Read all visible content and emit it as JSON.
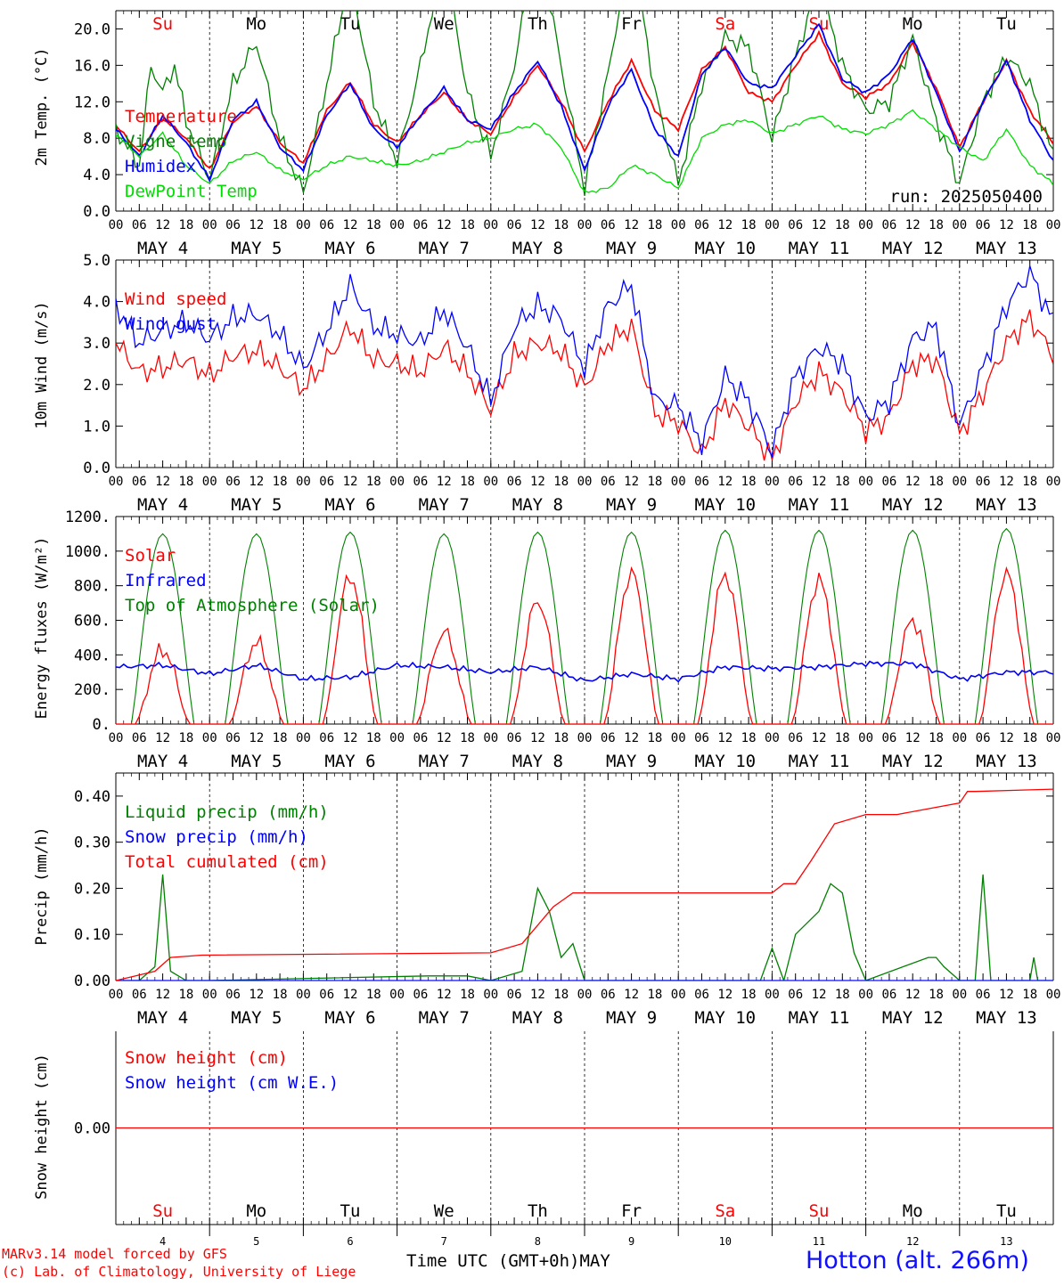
{
  "footer": {
    "model_line": "MARv3.14 model forced by GFS",
    "credit_line": "(c) Lab. of Climatology, University of Liege",
    "time_label": "Time UTC (GMT+0h)",
    "month": "MAY",
    "station": "Hotton (alt. 266m)"
  },
  "colors": {
    "red": "#ff0000",
    "green": "#008000",
    "lightgreen": "#00dd00",
    "blue": "#0000ff",
    "black": "#000000"
  },
  "chart_data": [
    {
      "type": "line",
      "ylabel": "2m Temp. (°C)",
      "ylim": [
        0,
        22
      ],
      "yticks": [
        "0.0",
        "4.0",
        "8.0",
        "12.0",
        "16.0",
        "20.0"
      ],
      "ytick_values": [
        0,
        4,
        8,
        12,
        16,
        20
      ],
      "annotation": "run: 2025050400",
      "days": [
        "Su",
        "Mo",
        "Tu",
        "We",
        "Th",
        "Fr",
        "Sa",
        "Su",
        "Mo",
        "Tu"
      ],
      "day_colors": [
        "red",
        "black",
        "black",
        "black",
        "black",
        "black",
        "red",
        "red",
        "black",
        "black"
      ],
      "dates": [
        "MAY  4",
        "MAY  5",
        "MAY  6",
        "MAY  7",
        "MAY  8",
        "MAY  9",
        "MAY 10",
        "MAY 11",
        "MAY 12",
        "MAY 13"
      ],
      "hour_labels": [
        "00",
        "06",
        "12",
        "18"
      ],
      "x_unit": "hours since 2025-05-04 00 UTC",
      "series": [
        {
          "name": "Temperature",
          "color": "red",
          "x": [
            0,
            6,
            12,
            18,
            24,
            30,
            36,
            42,
            48,
            54,
            60,
            66,
            72,
            78,
            84,
            90,
            96,
            102,
            108,
            114,
            120,
            126,
            132,
            138,
            144,
            150,
            156,
            162,
            168,
            174,
            180,
            186,
            192,
            198,
            204,
            210,
            216,
            222,
            228,
            234,
            240
          ],
          "y": [
            9.4,
            6.5,
            10.2,
            8.0,
            4.5,
            9.8,
            11.5,
            7.5,
            5.3,
            11.0,
            14.2,
            9.5,
            7.5,
            10.5,
            13.0,
            10.0,
            8.5,
            12.5,
            16.0,
            12.0,
            6.5,
            12.0,
            16.5,
            11.0,
            9.0,
            15.5,
            18.0,
            13.0,
            12.0,
            16.0,
            19.5,
            14.0,
            12.5,
            14.0,
            18.5,
            13.5,
            7.0,
            12.0,
            16.5,
            11.0,
            7.5
          ]
        },
        {
          "name": "Vigne temp",
          "color": "green",
          "x": [
            0,
            6,
            9,
            12,
            15,
            18,
            24,
            30,
            36,
            42,
            48,
            54,
            60,
            66,
            72,
            78,
            84,
            90,
            96,
            102,
            108,
            114,
            120,
            126,
            132,
            138,
            144,
            150,
            156,
            162,
            168,
            174,
            180,
            186,
            192,
            198,
            204,
            210,
            216,
            222,
            228,
            234,
            240
          ],
          "y": [
            9.0,
            5.0,
            16.0,
            13.0,
            16.0,
            10.0,
            3.5,
            14.0,
            18.5,
            8.0,
            2.0,
            14.0,
            26.0,
            12.0,
            5.5,
            16.0,
            28.0,
            13.0,
            6.0,
            16.0,
            30.0,
            16.0,
            2.5,
            15.0,
            30.0,
            13.0,
            3.0,
            14.0,
            19.0,
            18.0,
            8.0,
            17.0,
            25.0,
            16.0,
            11.0,
            12.0,
            19.0,
            10.0,
            3.0,
            12.0,
            17.0,
            14.0,
            6.0
          ]
        },
        {
          "name": "Humidex",
          "color": "blue",
          "x": [
            0,
            6,
            12,
            18,
            24,
            30,
            36,
            42,
            48,
            54,
            60,
            66,
            72,
            78,
            84,
            90,
            96,
            102,
            108,
            114,
            120,
            126,
            132,
            138,
            144,
            150,
            156,
            162,
            168,
            174,
            180,
            186,
            192,
            198,
            204,
            210,
            216,
            222,
            228,
            234,
            240
          ],
          "y": [
            9.0,
            6.0,
            10.5,
            7.5,
            3.5,
            10.0,
            12.0,
            7.0,
            4.5,
            10.5,
            14.0,
            9.0,
            7.0,
            10.5,
            13.5,
            10.0,
            9.0,
            13.0,
            16.5,
            11.5,
            4.5,
            11.5,
            15.5,
            9.0,
            6.0,
            15.0,
            18.0,
            14.0,
            13.5,
            17.0,
            20.5,
            14.5,
            13.0,
            15.0,
            19.0,
            13.0,
            6.5,
            12.0,
            16.5,
            10.0,
            5.5
          ]
        },
        {
          "name": "DewPoint Temp",
          "color": "lightgreen",
          "x": [
            0,
            6,
            12,
            18,
            24,
            30,
            36,
            42,
            48,
            54,
            60,
            66,
            72,
            78,
            84,
            90,
            96,
            102,
            108,
            114,
            120,
            126,
            132,
            138,
            144,
            150,
            156,
            162,
            168,
            174,
            180,
            186,
            192,
            198,
            204,
            210,
            216,
            222,
            228,
            234,
            240
          ],
          "y": [
            8.5,
            6.0,
            8.5,
            5.0,
            3.0,
            5.5,
            6.5,
            4.5,
            3.5,
            5.0,
            6.0,
            5.5,
            5.0,
            5.5,
            6.5,
            7.5,
            8.0,
            9.0,
            9.5,
            7.0,
            2.0,
            2.5,
            5.0,
            4.0,
            2.5,
            8.0,
            9.5,
            10.0,
            8.5,
            9.5,
            10.5,
            9.0,
            8.5,
            9.5,
            11.0,
            9.0,
            7.0,
            5.5,
            9.0,
            5.0,
            3.0
          ]
        }
      ]
    },
    {
      "type": "line",
      "ylabel": "10m Wind (m/s)",
      "ylim": [
        0,
        5
      ],
      "yticks": [
        "0.0",
        "1.0",
        "2.0",
        "3.0",
        "4.0",
        "5.0"
      ],
      "ytick_values": [
        0,
        1,
        2,
        3,
        4,
        5
      ],
      "days": [],
      "dates": [
        "MAY  4",
        "MAY  5",
        "MAY  6",
        "MAY  7",
        "MAY  8",
        "MAY  9",
        "MAY 10",
        "MAY 11",
        "MAY 12",
        "MAY 13"
      ],
      "hour_labels": [
        "00",
        "06",
        "12",
        "18"
      ],
      "x_unit": "hours since 2025-05-04 00 UTC",
      "series": [
        {
          "name": "Wind speed",
          "color": "red",
          "x": [
            0,
            6,
            12,
            18,
            24,
            30,
            36,
            42,
            48,
            54,
            60,
            66,
            72,
            78,
            84,
            90,
            96,
            102,
            108,
            114,
            120,
            126,
            132,
            138,
            144,
            150,
            156,
            162,
            168,
            174,
            180,
            186,
            192,
            198,
            204,
            210,
            216,
            222,
            228,
            234,
            240
          ],
          "y": [
            3.0,
            2.3,
            2.4,
            2.6,
            2.2,
            2.7,
            2.8,
            2.4,
            1.9,
            2.6,
            3.4,
            2.6,
            2.5,
            2.3,
            2.9,
            2.3,
            1.4,
            2.7,
            3.0,
            2.8,
            1.9,
            3.0,
            3.4,
            1.3,
            1.1,
            0.3,
            1.6,
            1.0,
            0.2,
            1.6,
            2.3,
            1.8,
            0.9,
            1.2,
            2.5,
            2.6,
            0.8,
            1.8,
            3.0,
            3.6,
            2.7
          ]
        },
        {
          "name": "Wind gust",
          "color": "blue",
          "x": [
            0,
            6,
            12,
            18,
            24,
            30,
            36,
            42,
            48,
            54,
            60,
            66,
            72,
            78,
            84,
            90,
            96,
            102,
            108,
            114,
            120,
            126,
            132,
            138,
            144,
            150,
            156,
            162,
            168,
            174,
            180,
            186,
            192,
            198,
            204,
            210,
            216,
            222,
            228,
            234,
            240
          ],
          "y": [
            3.9,
            3.0,
            3.3,
            3.5,
            3.1,
            3.6,
            3.7,
            3.2,
            2.4,
            3.3,
            4.4,
            3.4,
            3.2,
            3.0,
            3.8,
            2.9,
            1.6,
            3.4,
            3.9,
            3.6,
            2.4,
            3.9,
            4.4,
            1.6,
            1.5,
            0.6,
            2.2,
            1.6,
            0.4,
            2.2,
            2.9,
            2.5,
            1.2,
            1.6,
            3.1,
            3.4,
            1.0,
            2.4,
            3.9,
            4.7,
            3.5
          ]
        }
      ]
    },
    {
      "type": "line",
      "ylabel": "Energy fluxes (W/m²)",
      "ylim": [
        0,
        1200
      ],
      "yticks": [
        "0.",
        "200.",
        "400.",
        "600.",
        "800.",
        "1000.",
        "1200."
      ],
      "ytick_values": [
        0,
        200,
        400,
        600,
        800,
        1000,
        1200
      ],
      "days": [],
      "dates": [
        "MAY  4",
        "MAY  5",
        "MAY  6",
        "MAY  7",
        "MAY  8",
        "MAY  9",
        "MAY 10",
        "MAY 11",
        "MAY 12",
        "MAY 13"
      ],
      "hour_labels": [
        "00",
        "06",
        "12",
        "18"
      ],
      "x_unit": "hours since 2025-05-04 00 UTC",
      "toa_peaks": [
        1100,
        1100,
        1110,
        1100,
        1110,
        1110,
        1120,
        1120,
        1120,
        1130
      ],
      "solar_peaks": [
        430,
        470,
        850,
        530,
        710,
        870,
        860,
        830,
        600,
        870
      ],
      "series": [
        {
          "name": "Solar",
          "color": "red"
        },
        {
          "name": "Infrared",
          "color": "blue",
          "x": [
            0,
            12,
            24,
            36,
            48,
            60,
            72,
            84,
            96,
            108,
            120,
            132,
            144,
            156,
            168,
            180,
            192,
            204,
            216,
            228,
            240
          ],
          "y": [
            330,
            340,
            290,
            340,
            260,
            270,
            340,
            330,
            300,
            330,
            250,
            290,
            260,
            330,
            320,
            330,
            350,
            350,
            260,
            300,
            300
          ]
        },
        {
          "name": "Top of Atmosphere (Solar)",
          "color": "green"
        }
      ]
    },
    {
      "type": "line",
      "ylabel": "Precip (mm/h)",
      "ylim": [
        0,
        0.45
      ],
      "yticks": [
        "0.00",
        "0.10",
        "0.20",
        "0.30",
        "0.40"
      ],
      "ytick_values": [
        0,
        0.1,
        0.2,
        0.3,
        0.4
      ],
      "days": [],
      "dates": [
        "MAY  4",
        "MAY  5",
        "MAY  6",
        "MAY  7",
        "MAY  8",
        "MAY  9",
        "MAY 10",
        "MAY 11",
        "MAY 12",
        "MAY 13"
      ],
      "hour_labels": [
        "00",
        "06",
        "12",
        "18"
      ],
      "x_unit": "hours since 2025-05-04 00 UTC",
      "series": [
        {
          "name": "Liquid precip (mm/h)",
          "color": "green",
          "x": [
            0,
            6,
            10,
            12,
            14,
            18,
            24,
            80,
            90,
            96,
            104,
            108,
            111,
            114,
            117,
            120,
            165,
            168,
            171,
            174,
            180,
            183,
            186,
            189,
            192,
            208,
            210,
            212,
            216,
            220,
            222,
            224,
            226,
            234,
            235,
            236,
            240
          ],
          "y": [
            0.0,
            0.0,
            0.03,
            0.23,
            0.02,
            0.0,
            0.0,
            0.01,
            0.01,
            0.0,
            0.02,
            0.2,
            0.15,
            0.05,
            0.08,
            0.0,
            0.0,
            0.07,
            0.0,
            0.1,
            0.15,
            0.21,
            0.19,
            0.06,
            0.0,
            0.05,
            0.05,
            0.03,
            0.0,
            0.0,
            0.23,
            0.0,
            0.0,
            0.0,
            0.05,
            0.0,
            0.0
          ]
        },
        {
          "name": "Snow precip (mm/h)",
          "color": "blue",
          "x": [
            0,
            240
          ],
          "y": [
            0.0,
            0.0
          ]
        },
        {
          "name": "Total cumulated (cm)",
          "color": "red",
          "x": [
            0,
            10,
            14,
            22,
            96,
            104,
            112,
            117,
            120,
            168,
            171,
            174,
            178,
            184,
            192,
            200,
            216,
            218,
            220,
            240
          ],
          "y": [
            0.0,
            0.02,
            0.05,
            0.055,
            0.06,
            0.08,
            0.16,
            0.19,
            0.19,
            0.19,
            0.21,
            0.21,
            0.26,
            0.34,
            0.36,
            0.36,
            0.385,
            0.41,
            0.41,
            0.415
          ]
        }
      ]
    },
    {
      "type": "line",
      "ylabel": "Snow height (cm)",
      "ylim": [
        -1,
        1
      ],
      "yticks": [
        "0.00"
      ],
      "ytick_values": [
        0
      ],
      "days": [
        "Su",
        "Mo",
        "Tu",
        "We",
        "Th",
        "Fr",
        "Sa",
        "Su",
        "Mo",
        "Tu"
      ],
      "day_colors": [
        "red",
        "black",
        "black",
        "black",
        "black",
        "black",
        "red",
        "red",
        "black",
        "black"
      ],
      "day_numbers": [
        "4",
        "5",
        "6",
        "7",
        "8",
        "9",
        "10",
        "11",
        "12",
        "13"
      ],
      "x_unit": "hours since 2025-05-04 00 UTC",
      "series": [
        {
          "name": "Snow height (cm)",
          "color": "red",
          "x": [
            0,
            240
          ],
          "y": [
            0,
            0
          ]
        },
        {
          "name": "Snow height (cm W.E.)",
          "color": "blue"
        }
      ]
    }
  ]
}
